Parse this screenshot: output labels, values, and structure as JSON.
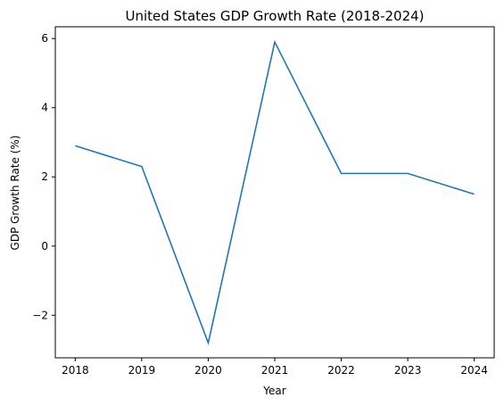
{
  "colors": {
    "series_line": "#1f77b4",
    "axes": "#000000",
    "background": "#ffffff"
  },
  "chart_data": {
    "type": "line",
    "title": "United States GDP Growth Rate (2018-2024)",
    "xlabel": "Year",
    "ylabel": "GDP Growth Rate (%)",
    "x": [
      2018,
      2019,
      2020,
      2021,
      2022,
      2023,
      2024
    ],
    "x_tick_labels": [
      "2018",
      "2019",
      "2020",
      "2021",
      "2022",
      "2023",
      "2024"
    ],
    "y_ticks": [
      -2,
      0,
      2,
      4,
      6
    ],
    "y_tick_labels": [
      "−2",
      "0",
      "2",
      "4",
      "6"
    ],
    "xlim": [
      2017.7,
      2024.3
    ],
    "ylim": [
      -3.23,
      6.34
    ],
    "grid": false,
    "legend": "none",
    "series": [
      {
        "values": [
          2.9,
          2.3,
          -2.8,
          5.9,
          2.1,
          2.1,
          1.5
        ]
      }
    ]
  }
}
